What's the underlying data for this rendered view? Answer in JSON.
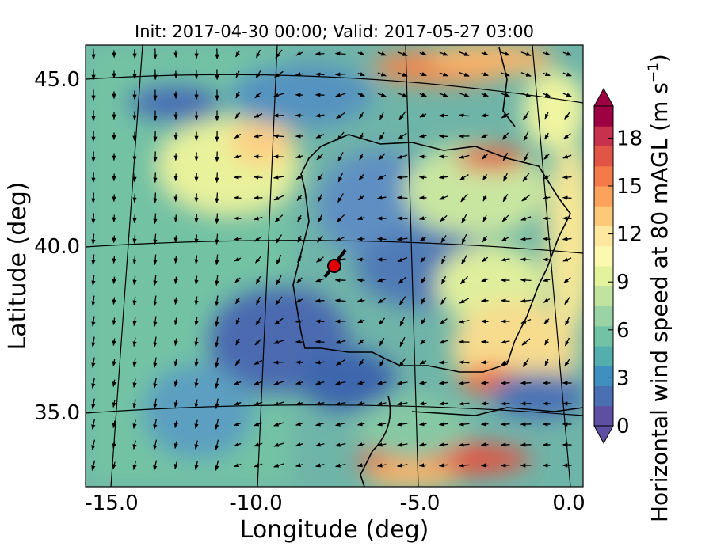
{
  "title": "Init: 2017-04-30 00:00; Valid: 2017-05-27 03:00",
  "xlabel": "Longitude (deg)",
  "ylabel": "Latitude (deg)",
  "colorbar": {
    "label": "Horizontal wind speed at 80 mAGL (m s",
    "label_exponent": "−1",
    "label_close": ")",
    "ticks": [
      "0",
      "3",
      "6",
      "9",
      "12",
      "15",
      "18"
    ],
    "range": [
      0,
      20
    ],
    "extend": "both",
    "colormap": [
      "#5e4fa2",
      "#4a6fb3",
      "#3f8fbf",
      "#54aead",
      "#72c3a6",
      "#9bd4a4",
      "#c0e4a0",
      "#e3f29c",
      "#fbf8b0",
      "#fee8a0",
      "#fdc878",
      "#fba25d",
      "#f47a4a",
      "#e05545",
      "#c7314b",
      "#9e0142"
    ]
  },
  "map": {
    "x_ticks": [
      "-15.0",
      "-10.0",
      "-5.0",
      "0.0"
    ],
    "y_ticks": [
      "45.0",
      "40.0",
      "35.0"
    ],
    "lon_range": [
      -16,
      0.5
    ],
    "lat_range": [
      32,
      46.5
    ],
    "marker": {
      "lon": -7.6,
      "lat": 39.3,
      "color": "#e00000"
    }
  }
}
